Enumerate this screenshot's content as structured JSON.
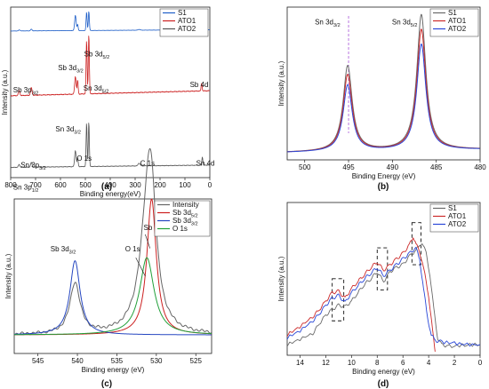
{
  "chart_data": [
    {
      "panel_label": "(a)",
      "type": "line",
      "xlabel": "Binding energy(eV)",
      "ylabel": "Intensity (a.u.)",
      "xlim": [
        800,
        0
      ],
      "x_ticks": [
        800,
        700,
        600,
        500,
        400,
        300,
        200,
        100,
        0
      ],
      "legend": [
        "S1",
        "ATO1",
        "ATO2"
      ],
      "legend_position": "top-right",
      "series": [
        {
          "name": "S1",
          "color": "#1f5fc8",
          "offset": 0.86,
          "height": 0.12,
          "baseline": [
            [
              800,
              0.0
            ],
            [
              0,
              0.06
            ]
          ],
          "peaks": [
            [
              765,
              0.05,
              3
            ],
            [
              717,
              0.08,
              3
            ],
            [
              540,
              0.75,
              3
            ],
            [
              531,
              0.3,
              2
            ],
            [
              495,
              0.9,
              2
            ],
            [
              486,
              0.95,
              2
            ],
            [
              284,
              0.04,
              4
            ],
            [
              32,
              0.35,
              2
            ],
            [
              25,
              0.2,
              2
            ]
          ]
        },
        {
          "name": "ATO1",
          "color": "#cc2020",
          "offset": 0.48,
          "height": 0.37,
          "baseline": [
            [
              800,
              0.0
            ],
            [
              0,
              0.08
            ]
          ],
          "peaks": [
            [
              766,
              0.08,
              3
            ],
            [
              717,
              0.12,
              3
            ],
            [
              540,
              0.28,
              3
            ],
            [
              531,
              0.22,
              2
            ],
            [
              495,
              0.85,
              2
            ],
            [
              486,
              0.95,
              2
            ],
            [
              33,
              0.12,
              2
            ]
          ]
        },
        {
          "name": "ATO2",
          "color": "#555555",
          "offset": 0.06,
          "height": 0.27,
          "baseline": [
            [
              800,
              0.0
            ],
            [
              0,
              0.05
            ]
          ],
          "peaks": [
            [
              766,
              0.06,
              3
            ],
            [
              717,
              0.1,
              3
            ],
            [
              540,
              0.35,
              3
            ],
            [
              531,
              0.2,
              2
            ],
            [
              495,
              0.95,
              2
            ],
            [
              486,
              0.98,
              2
            ],
            [
              284,
              0.06,
              4
            ],
            [
              30,
              0.18,
              2
            ]
          ]
        }
      ],
      "annotations": [
        {
          "text": "Sb 3d",
          "sub": "5/2",
          "x": 505,
          "y": 0.71
        },
        {
          "text": "Sb 3d",
          "sub": "3/2",
          "x": 610,
          "y": 0.63
        },
        {
          "text": "Sb 3p",
          "sub": "3/2",
          "x": 790,
          "y": 0.5
        },
        {
          "text": "Sn 3d",
          "sub": "5/2",
          "x": 508,
          "y": 0.51
        },
        {
          "text": "Sb 4d",
          "sub": "",
          "x": 80,
          "y": 0.53
        },
        {
          "text": "Sn 3d",
          "sub": "3/2",
          "x": 620,
          "y": 0.27
        },
        {
          "text": "O 1s",
          "sub": "",
          "x": 535,
          "y": 0.1
        },
        {
          "text": "C 1s",
          "sub": "",
          "x": 280,
          "y": 0.07
        },
        {
          "text": "Sn 4d",
          "sub": "",
          "x": 55,
          "y": 0.07
        },
        {
          "text": "Sn 3p",
          "sub": "3/2",
          "x": 760,
          "y": 0.06
        },
        {
          "text": "Sn 3p",
          "sub": "1/2",
          "x": 790,
          "y": -0.07
        }
      ]
    },
    {
      "panel_label": "(b)",
      "type": "line",
      "xlabel": "Binding Energy (eV)",
      "ylabel": "Intensity (a.u.)",
      "xlim": [
        502,
        480
      ],
      "x_ticks": [
        500,
        495,
        490,
        485,
        480
      ],
      "legend": [
        "S1",
        "ATO1",
        "ATO2"
      ],
      "legend_position": "top-right",
      "dashed_line_x": 495,
      "peaks_x": [
        495.1,
        486.7
      ],
      "series": [
        {
          "name": "S1",
          "color": "#6a6a6a",
          "peak_heights": [
            0.58,
            0.92
          ],
          "width": 0.62
        },
        {
          "name": "ATO1",
          "color": "#cc2a2a",
          "peak_heights": [
            0.52,
            0.82
          ],
          "width": 0.62
        },
        {
          "name": "ATO2",
          "color": "#2a48d8",
          "peak_heights": [
            0.45,
            0.72
          ],
          "width": 0.62
        }
      ],
      "annotations": [
        {
          "text": "Sn 3d",
          "sub": "3/2",
          "x": 497.4,
          "y": 0.99
        },
        {
          "text": "Sn 3d",
          "sub": "5/2",
          "x": 488.6,
          "y": 0.99
        }
      ]
    },
    {
      "panel_label": "(c)",
      "type": "line",
      "xlabel": "Binding energy (eV)",
      "ylabel": "Intensity (a.u.)",
      "xlim": [
        548,
        523
      ],
      "x_ticks": [
        545,
        540,
        535,
        530,
        525
      ],
      "legend": [
        "Intensity",
        "Sb 3d",
        "Sb 3d",
        "O 1s"
      ],
      "legend_subs": [
        "",
        "5/2",
        "3/2",
        ""
      ],
      "legend_position": "top-right",
      "series": [
        {
          "name": "Intensity",
          "color": "#666666",
          "components": [
            [
              540.3,
              0.33,
              0.78
            ],
            [
              530.7,
              0.73,
              0.78
            ],
            [
              531.2,
              0.55,
              1.2
            ]
          ],
          "baseline": 0.12
        },
        {
          "name": "Sb 3d5/2",
          "color": "#cc2020",
          "components": [
            [
              530.6,
              0.88,
              0.72
            ]
          ],
          "baseline": 0.12
        },
        {
          "name": "Sb 3d3/2",
          "color": "#2546c0",
          "components": [
            [
              540.3,
              0.48,
              0.78
            ]
          ],
          "baseline": 0.12
        },
        {
          "name": "O 1s",
          "color": "#22a03a",
          "components": [
            [
              531.2,
              0.5,
              1.1
            ]
          ],
          "baseline": 0.12
        }
      ],
      "annotations": [
        {
          "text": "Sb 3d",
          "sub": "3/2",
          "x": 541.8,
          "y": 0.66
        },
        {
          "text": "O 1s",
          "sub": "",
          "x": 533.0,
          "y": 0.66
        },
        {
          "text": "Sb 3d",
          "sub": "5/2",
          "x": 530.0,
          "y": 0.8
        }
      ]
    },
    {
      "panel_label": "(d)",
      "type": "line",
      "xlabel": "Binding energy (eV)",
      "ylabel": "Intensity (a.u.)",
      "xlim": [
        15,
        0
      ],
      "x_ticks": [
        14,
        12,
        10,
        8,
        6,
        4,
        2,
        0
      ],
      "legend": [
        "S1",
        "ATO1",
        "ATO2"
      ],
      "legend_position": "top-right",
      "dashed_boxes_x": [
        [
          11.5,
          10.6
        ],
        [
          8.0,
          7.2
        ],
        [
          5.3,
          4.6
        ]
      ],
      "series": [
        {
          "name": "S1",
          "color": "#6a6a6a",
          "points": [
            [
              15,
              0.05
            ],
            [
              14,
              0.09
            ],
            [
              13,
              0.13
            ],
            [
              12.5,
              0.2
            ],
            [
              12,
              0.26
            ],
            [
              11.5,
              0.3
            ],
            [
              11,
              0.33
            ],
            [
              10.5,
              0.32
            ],
            [
              10,
              0.36
            ],
            [
              9.5,
              0.42
            ],
            [
              9,
              0.48
            ],
            [
              8.5,
              0.52
            ],
            [
              8,
              0.57
            ],
            [
              7.5,
              0.5
            ],
            [
              7,
              0.57
            ],
            [
              6.5,
              0.6
            ],
            [
              6,
              0.62
            ],
            [
              5.5,
              0.68
            ],
            [
              5,
              0.72
            ],
            [
              4.7,
              0.76
            ],
            [
              4.5,
              0.78
            ],
            [
              4.2,
              0.7
            ],
            [
              3.9,
              0.55
            ],
            [
              3.6,
              0.3
            ],
            [
              3.3,
              0.1
            ],
            [
              3.0,
              0.05
            ],
            [
              2.5,
              0.04
            ],
            [
              2,
              0.04
            ],
            [
              1,
              0.05
            ],
            [
              0,
              0.05
            ]
          ]
        },
        {
          "name": "ATO1",
          "color": "#cc2a2a",
          "points": [
            [
              15,
              0.12
            ],
            [
              14,
              0.18
            ],
            [
              13,
              0.25
            ],
            [
              12.5,
              0.3
            ],
            [
              12,
              0.36
            ],
            [
              11.5,
              0.42
            ],
            [
              11,
              0.43
            ],
            [
              10.5,
              0.38
            ],
            [
              10,
              0.45
            ],
            [
              9.5,
              0.5
            ],
            [
              9,
              0.55
            ],
            [
              8.5,
              0.6
            ],
            [
              8,
              0.64
            ],
            [
              7.5,
              0.58
            ],
            [
              7,
              0.62
            ],
            [
              6.5,
              0.66
            ],
            [
              6,
              0.7
            ],
            [
              5.5,
              0.76
            ],
            [
              5.2,
              0.82
            ],
            [
              5.0,
              0.78
            ],
            [
              4.5,
              0.65
            ],
            [
              4.0,
              0.4
            ],
            [
              3.7,
              0.15
            ],
            [
              3.5,
              0.0
            ]
          ]
        },
        {
          "name": "ATO2",
          "color": "#2a48d8",
          "points": [
            [
              15,
              0.1
            ],
            [
              14,
              0.15
            ],
            [
              13,
              0.22
            ],
            [
              12.5,
              0.27
            ],
            [
              12,
              0.33
            ],
            [
              11.5,
              0.38
            ],
            [
              11,
              0.4
            ],
            [
              10.5,
              0.35
            ],
            [
              10,
              0.42
            ],
            [
              9.5,
              0.47
            ],
            [
              9,
              0.52
            ],
            [
              8.5,
              0.56
            ],
            [
              8,
              0.6
            ],
            [
              7.5,
              0.54
            ],
            [
              7,
              0.58
            ],
            [
              6.5,
              0.62
            ],
            [
              6,
              0.66
            ],
            [
              5.5,
              0.7
            ],
            [
              5.0,
              0.74
            ],
            [
              4.7,
              0.66
            ],
            [
              4.4,
              0.45
            ],
            [
              4.1,
              0.25
            ],
            [
              3.8,
              0.12
            ],
            [
              3.5,
              0.08
            ],
            [
              3,
              0.07
            ],
            [
              2,
              0.06
            ],
            [
              1,
              0.05
            ],
            [
              0,
              0.05
            ]
          ]
        }
      ]
    }
  ]
}
